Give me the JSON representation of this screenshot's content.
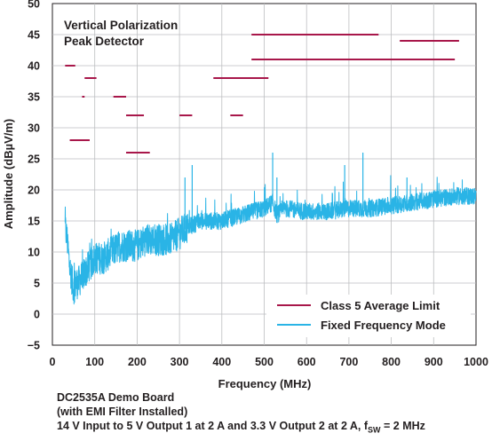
{
  "chart_data": {
    "type": "line",
    "xlabel": "Frequency (MHz)",
    "ylabel": "Amplitude (dBµV/m)",
    "xlim": [
      0,
      1000
    ],
    "ylim": [
      -5,
      50
    ],
    "x_ticks": [
      "0",
      "100",
      "200",
      "300",
      "400",
      "500",
      "600",
      "700",
      "800",
      "900",
      "1000"
    ],
    "y_ticks": [
      "−5",
      "0",
      "5",
      "10",
      "15",
      "20",
      "25",
      "30",
      "35",
      "40",
      "45",
      "50"
    ],
    "grid": true,
    "legend_position": "bottom-right",
    "annotation_lines": [
      "Vertical Polarization",
      "Peak Detector"
    ],
    "series": [
      {
        "name": "Class 5 Average Limit",
        "color": "#a8174a",
        "segments": [
          {
            "x": [
              30,
              54
            ],
            "y": 40
          },
          {
            "x": [
              70,
              76
            ],
            "y": 35
          },
          {
            "x": [
              76,
              104
            ],
            "y": 38
          },
          {
            "x": [
              41,
              88
            ],
            "y": 28
          },
          {
            "x": [
              174,
              230
            ],
            "y": 26
          },
          {
            "x": [
              144,
              174
            ],
            "y": 35
          },
          {
            "x": [
              174,
              216
            ],
            "y": 32
          },
          {
            "x": [
              300,
              330
            ],
            "y": 32
          },
          {
            "x": [
              420,
              450
            ],
            "y": 32
          },
          {
            "x": [
              380,
              510
            ],
            "y": 38
          },
          {
            "x": [
              470,
              770
            ],
            "y": 45
          },
          {
            "x": [
              470,
              950
            ],
            "y": 41
          },
          {
            "x": [
              820,
              960
            ],
            "y": 44
          }
        ]
      },
      {
        "name": "Fixed Frequency Mode",
        "color": "#2ab4e6",
        "x": [
          30,
          35,
          40,
          45,
          50,
          55,
          60,
          70,
          80,
          90,
          100,
          120,
          140,
          160,
          180,
          200,
          220,
          250,
          280,
          300,
          320,
          350,
          380,
          400,
          450,
          500,
          520,
          530,
          550,
          600,
          650,
          700,
          750,
          800,
          850,
          900,
          950,
          1000
        ],
        "y": [
          14,
          12,
          8,
          6,
          4,
          5,
          5,
          6,
          7,
          8,
          9,
          9,
          10,
          11,
          11,
          11,
          12,
          12,
          12,
          13,
          14,
          15,
          15,
          15,
          16,
          17,
          18,
          16,
          17,
          16.5,
          16.5,
          17,
          17,
          17.5,
          18,
          18.5,
          19,
          19
        ]
      }
    ]
  },
  "notes": {
    "line1": "DC2535A Demo Board",
    "line2": "(with EMI Filter Installed)",
    "line3_main": "14 V Input to 5 V Output 1 at 2 A and 3.3 V Output 2 at 2 A, f",
    "line3_sub": "SW",
    "line3_tail": " = 2 MHz"
  }
}
